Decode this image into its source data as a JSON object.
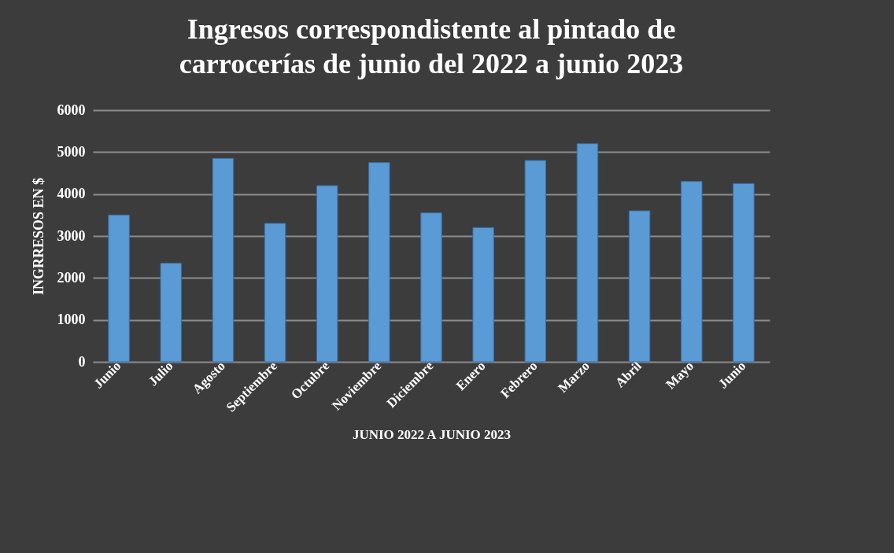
{
  "chart_data": {
    "type": "bar",
    "title": "Ingresos correspondistente al pintado de carrocerías de junio del 2022 a junio 2023",
    "xlabel": "JUNIO 2022 A JUNIO 2023",
    "ylabel": "INGRRESOS EN  $",
    "categories": [
      "Junio",
      "Julio",
      "Agosto",
      "Septiembre",
      "Octubre",
      "Noviembre",
      "Diciembre",
      "Enero",
      "Febrero",
      "Marzo",
      "Abril",
      "Mayo",
      "Junio"
    ],
    "values": [
      3500,
      2350,
      4850,
      3300,
      4200,
      4750,
      3550,
      3200,
      4800,
      5200,
      3600,
      4300,
      4250
    ],
    "color": "#5b9bd5",
    "ylim": [
      0,
      6000
    ],
    "yticks": [
      0,
      1000,
      2000,
      3000,
      4000,
      5000,
      6000
    ],
    "grid": "y"
  }
}
